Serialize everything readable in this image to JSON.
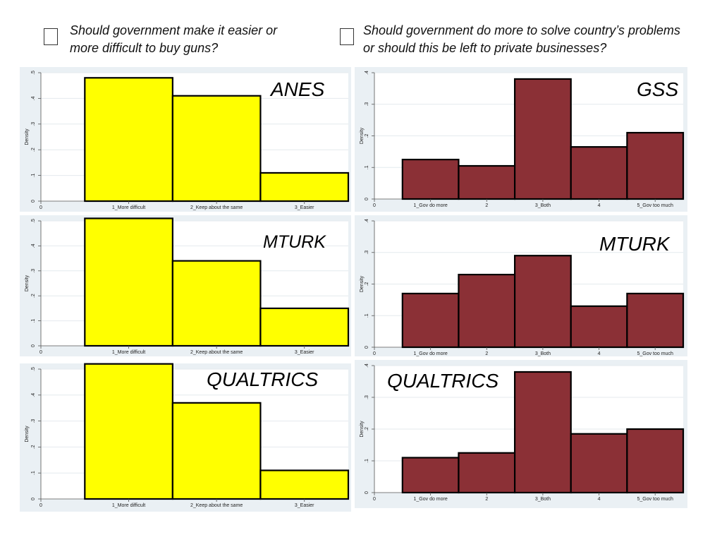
{
  "legend": [
    {
      "color": "#ffff00",
      "text": "Should government make it easier or\nmore difficult to buy guns?"
    },
    {
      "color": "#8b3036",
      "text": "Should government do more to solve country’s problems\nor should this be left to private businesses?"
    }
  ],
  "chart_data": [
    {
      "type": "bar",
      "title": "ANES",
      "ylabel": "Density",
      "ylim": [
        0,
        0.5
      ],
      "yticks": [
        "0",
        ".1",
        ".2",
        ".3",
        ".4",
        ".5"
      ],
      "xticks": [
        "0",
        "1_More difficult",
        "2_Keep about the same",
        "3_Easier"
      ],
      "categories": [
        "1_More difficult",
        "2_Keep about the same",
        "3_Easier"
      ],
      "values": [
        0.48,
        0.41,
        0.11
      ],
      "color": "#ffff00"
    },
    {
      "type": "bar",
      "title": "GSS",
      "ylabel": "Density",
      "ylim": [
        0,
        0.4
      ],
      "yticks": [
        "0",
        ".1",
        ".2",
        ".3",
        ".4"
      ],
      "xticks": [
        "0",
        "1_Gov do more",
        "2",
        "3_Both",
        "4",
        "5_Gov too much"
      ],
      "categories": [
        "1_Gov do more",
        "2",
        "3_Both",
        "4",
        "5_Gov too much"
      ],
      "values": [
        0.125,
        0.105,
        0.38,
        0.165,
        0.21
      ],
      "color": "#8b3036"
    },
    {
      "type": "bar",
      "title": "MTURK",
      "ylabel": "Density",
      "ylim": [
        0,
        0.5
      ],
      "yticks": [
        "0",
        ".1",
        ".2",
        ".3",
        ".4",
        ".5"
      ],
      "xticks": [
        "0",
        "1_More difficult",
        "2_Keep about the same",
        "3_Easier"
      ],
      "categories": [
        "1_More difficult",
        "2_Keep about the same",
        "3_Easier"
      ],
      "values": [
        0.51,
        0.34,
        0.15
      ],
      "color": "#ffff00"
    },
    {
      "type": "bar",
      "title": "MTURK",
      "ylabel": "Density",
      "ylim": [
        0,
        0.4
      ],
      "yticks": [
        "0",
        ".1",
        ".2",
        ".3",
        ".4"
      ],
      "xticks": [
        "0",
        "1_Gov do more",
        "2",
        "3_Both",
        "4",
        "5_Gov too much"
      ],
      "categories": [
        "1_Gov do more",
        "2",
        "3_Both",
        "4",
        "5_Gov too much"
      ],
      "values": [
        0.17,
        0.23,
        0.29,
        0.13,
        0.17
      ],
      "color": "#8b3036"
    },
    {
      "type": "bar",
      "title": "QUALTRICS",
      "ylabel": "Density",
      "ylim": [
        0,
        0.5
      ],
      "yticks": [
        "0",
        ".1",
        ".2",
        ".3",
        ".4",
        ".5"
      ],
      "xticks": [
        "0",
        "1_More difficult",
        "2_Keep about the same",
        "3_Easier"
      ],
      "categories": [
        "1_More difficult",
        "2_Keep about the same",
        "3_Easier"
      ],
      "values": [
        0.52,
        0.37,
        0.11
      ],
      "color": "#ffff00"
    },
    {
      "type": "bar",
      "title": "QUALTRICS",
      "ylabel": "Density",
      "ylim": [
        0,
        0.4
      ],
      "yticks": [
        "0",
        ".1",
        ".2",
        ".3",
        ".4"
      ],
      "xticks": [
        "0",
        "1_Gov do more",
        "2",
        "3_Both",
        "4",
        "5_Gov too much"
      ],
      "categories": [
        "1_Gov do more",
        "2",
        "3_Both",
        "4",
        "5_Gov too much"
      ],
      "values": [
        0.11,
        0.125,
        0.38,
        0.185,
        0.2
      ],
      "color": "#8b3036"
    }
  ]
}
